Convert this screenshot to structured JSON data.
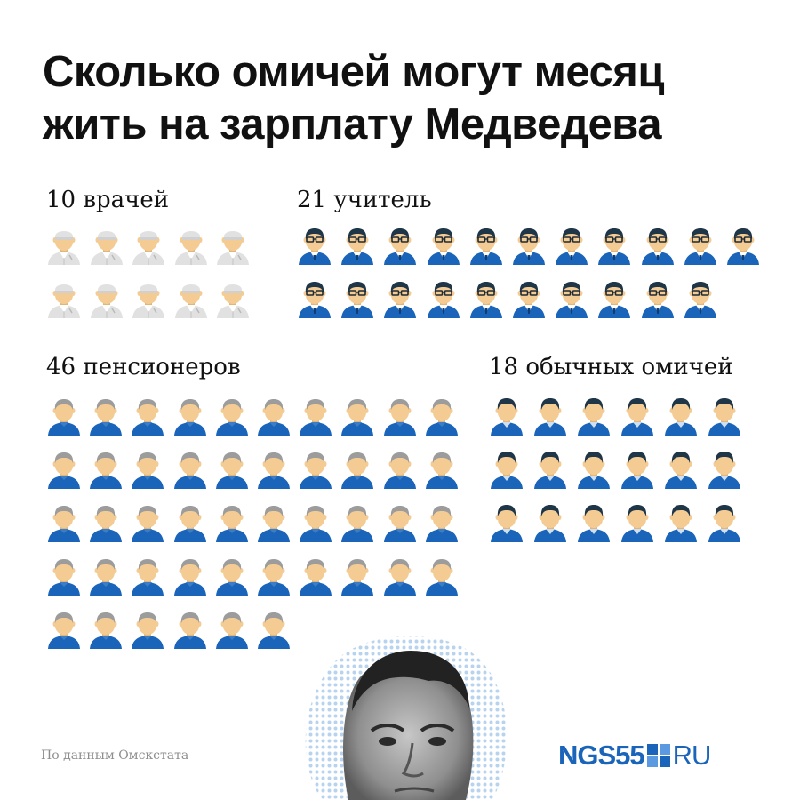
{
  "title": "Сколько омичей могут месяц жить на зарплату Медведева",
  "groups": [
    {
      "label": "10 врачей",
      "icon": "doctor-icon",
      "count": 10
    },
    {
      "label": "21 учитель",
      "icon": "teacher-icon",
      "count": 21
    },
    {
      "label": "46 пенсионеров",
      "icon": "pensioner-icon",
      "count": 46
    },
    {
      "label": "18 обычных омичей",
      "icon": "citizen-icon",
      "count": 18
    }
  ],
  "source": "По данным Омскстата",
  "logo": {
    "main": "NGS55",
    "suffix": "RU"
  },
  "colors": {
    "blue": "#1a64b9",
    "skin": "#f4cc93",
    "grey_hair": "#9c9c9c",
    "dark_hair": "#1f3548",
    "doctor_coat": "#e1e1e1"
  }
}
